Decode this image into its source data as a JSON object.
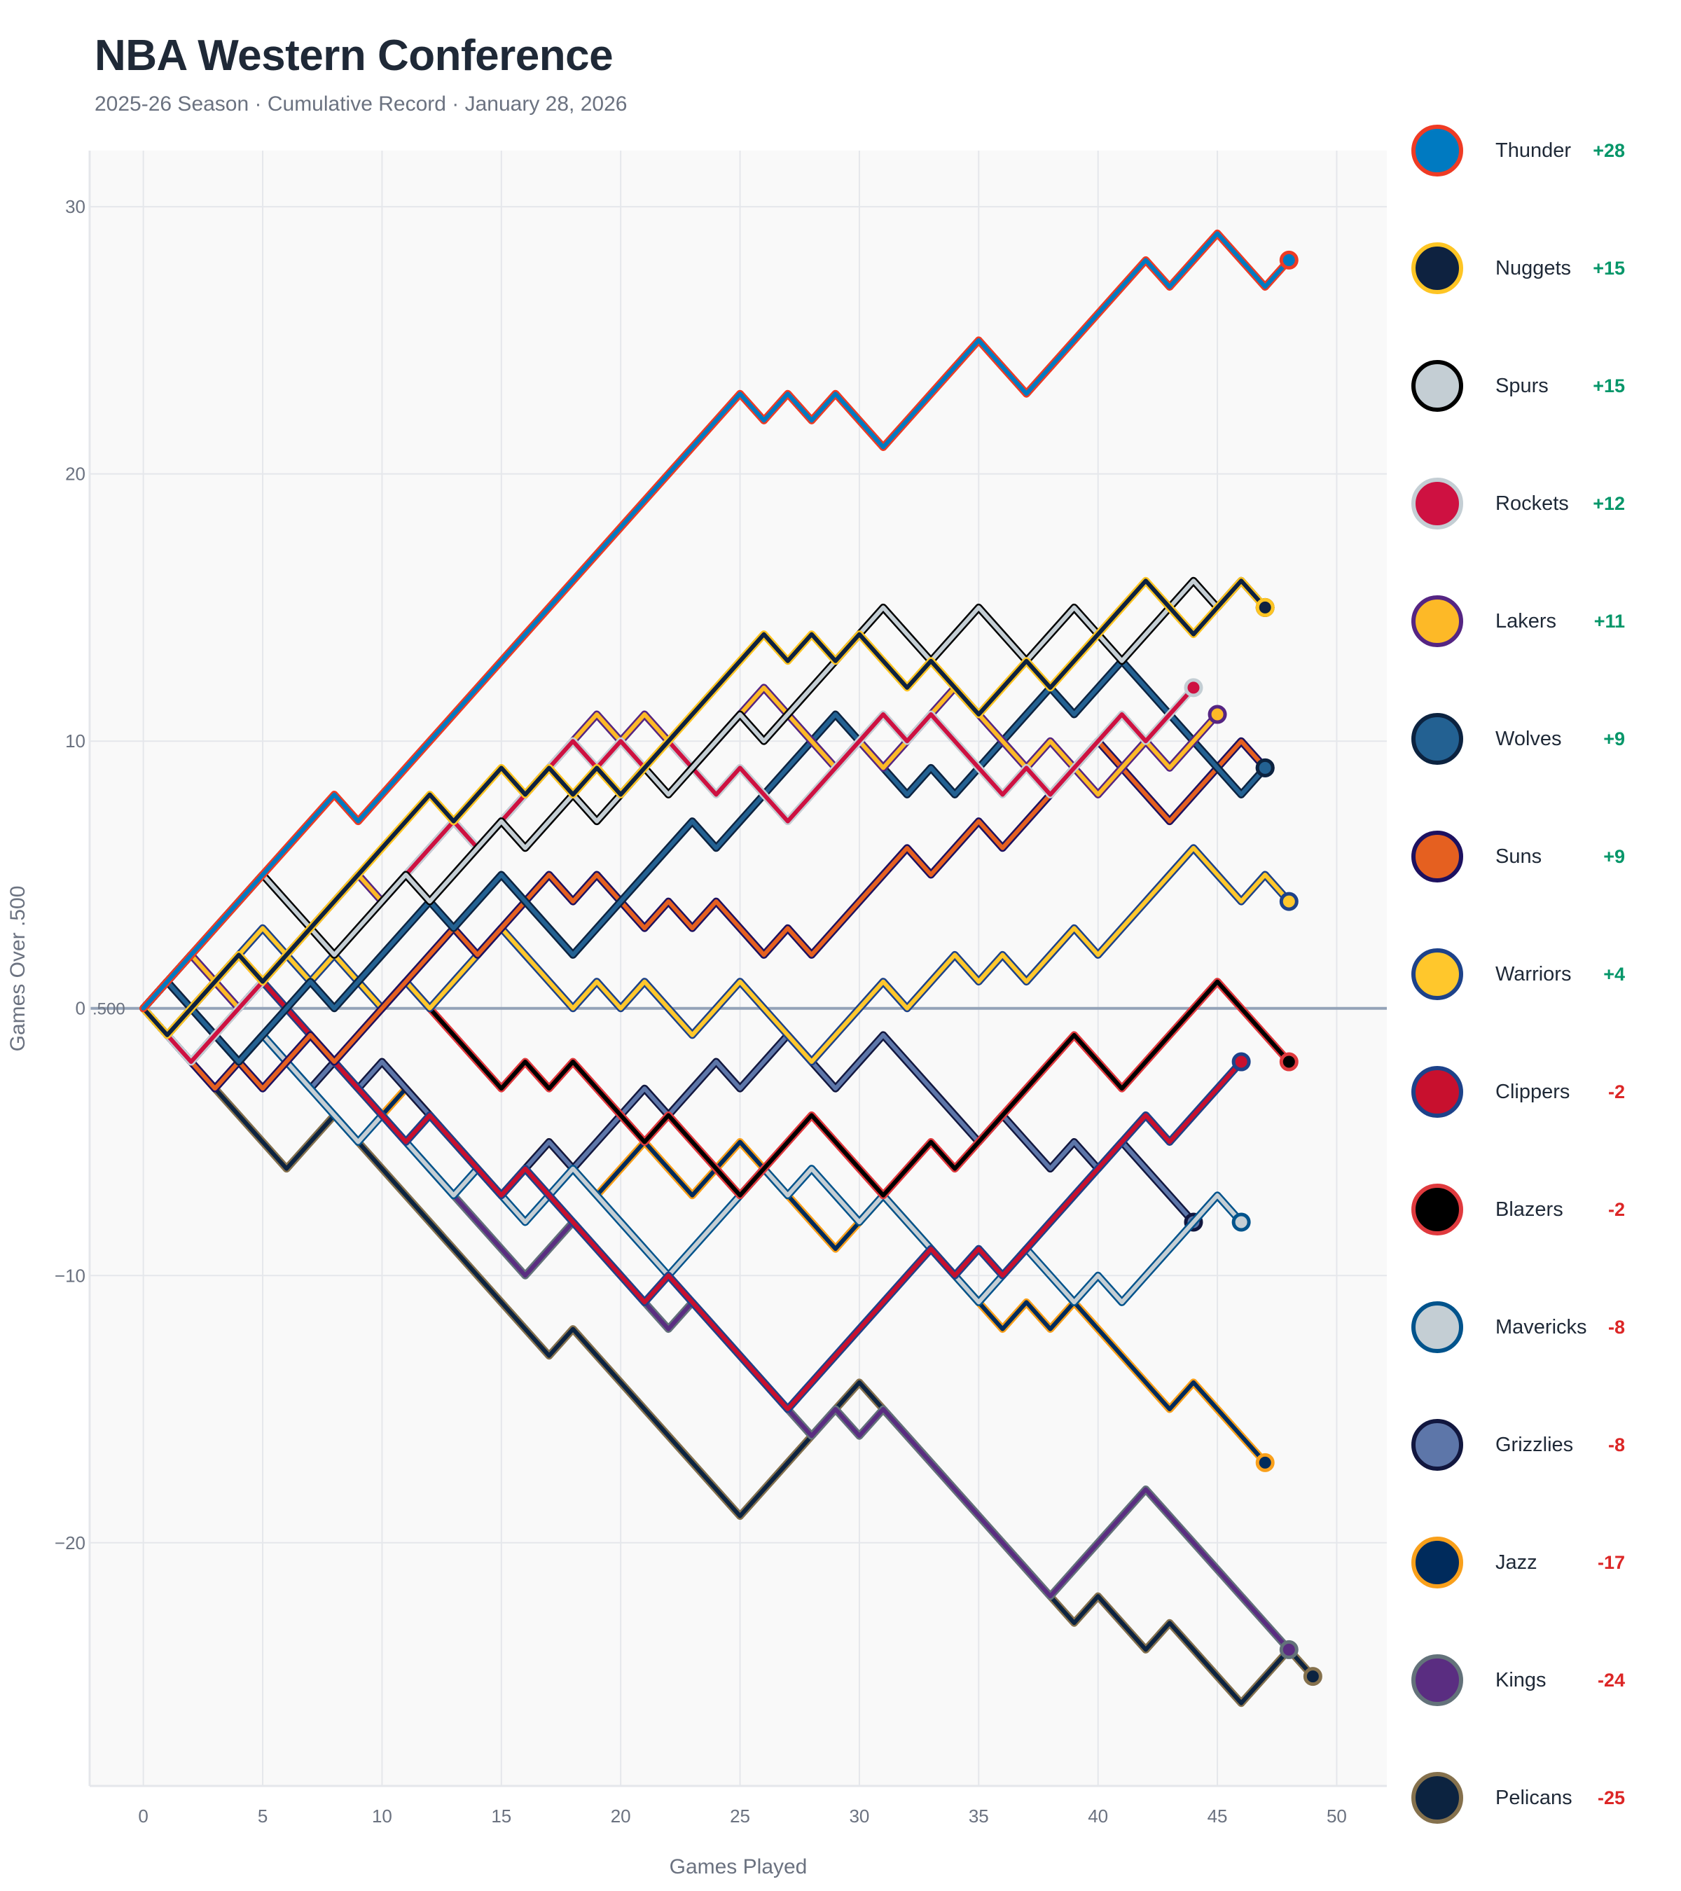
{
  "header": {
    "title": "NBA Western Conference",
    "subtitle": "2025-26 Season · Cumulative Record · January 28, 2026"
  },
  "chart_data": {
    "type": "line",
    "title": "NBA Western Conference",
    "subtitle": "2025-26 Season · Cumulative Record · January 28, 2026",
    "xlabel": "Games Played",
    "ylabel": "Games Over .500",
    "xlim": [
      -2.25,
      52.1
    ],
    "ylim": [
      -29.1,
      32.1
    ],
    "x_ticks": [
      0,
      5,
      10,
      15,
      20,
      25,
      30,
      35,
      40,
      45,
      50
    ],
    "y_ticks": [
      -20,
      -10,
      0,
      10,
      20,
      30
    ],
    "y_tick_labels": [
      "−20",
      "−10",
      "0",
      "10",
      "20",
      "30"
    ],
    "reference_line": {
      "value": 0,
      "label": ".500"
    },
    "grid": true,
    "legend_placement": "right",
    "series": [
      {
        "name": "Thunder",
        "final": "+28",
        "color": "#007AC1",
        "outline": "#EF3B24",
        "values": [
          0,
          1,
          2,
          3,
          4,
          5,
          6,
          7,
          8,
          7,
          8,
          9,
          10,
          11,
          12,
          13,
          14,
          15,
          16,
          17,
          18,
          19,
          20,
          21,
          22,
          23,
          22,
          23,
          22,
          23,
          22,
          21,
          22,
          23,
          24,
          25,
          24,
          23,
          24,
          25,
          26,
          27,
          28,
          27,
          28,
          29,
          28,
          27,
          28
        ]
      },
      {
        "name": "Nuggets",
        "final": "+15",
        "color": "#0E2240",
        "outline": "#FEC524",
        "values": [
          0,
          -1,
          0,
          1,
          2,
          1,
          2,
          3,
          4,
          5,
          6,
          7,
          8,
          7,
          8,
          9,
          8,
          9,
          8,
          9,
          8,
          9,
          10,
          11,
          12,
          13,
          14,
          13,
          14,
          13,
          14,
          13,
          12,
          13,
          12,
          11,
          12,
          13,
          12,
          13,
          14,
          15,
          16,
          15,
          14,
          15,
          16,
          15
        ]
      },
      {
        "name": "Spurs",
        "final": "+15",
        "color": "#C4CED4",
        "outline": "#000000",
        "values": [
          0,
          1,
          2,
          3,
          4,
          5,
          4,
          3,
          2,
          3,
          4,
          5,
          4,
          5,
          6,
          7,
          6,
          7,
          8,
          7,
          8,
          9,
          8,
          9,
          10,
          11,
          10,
          11,
          12,
          13,
          14,
          15,
          14,
          13,
          14,
          15,
          14,
          13,
          14,
          15,
          14,
          13,
          14,
          15,
          16,
          15,
          16,
          15
        ]
      },
      {
        "name": "Rockets",
        "final": "+12",
        "color": "#CE1141",
        "outline": "#C4CED4",
        "values": [
          0,
          -1,
          -2,
          -1,
          0,
          1,
          2,
          3,
          2,
          3,
          4,
          5,
          6,
          7,
          6,
          7,
          8,
          9,
          10,
          9,
          10,
          9,
          10,
          9,
          8,
          9,
          8,
          7,
          8,
          9,
          10,
          11,
          10,
          11,
          10,
          9,
          8,
          9,
          8,
          9,
          10,
          11,
          10,
          11,
          12
        ]
      },
      {
        "name": "Lakers",
        "final": "+11",
        "color": "#FDB927",
        "outline": "#552583",
        "values": [
          0,
          1,
          2,
          1,
          0,
          1,
          2,
          3,
          4,
          5,
          4,
          5,
          6,
          7,
          6,
          7,
          8,
          9,
          10,
          11,
          10,
          11,
          10,
          9,
          10,
          11,
          12,
          11,
          10,
          9,
          10,
          9,
          10,
          11,
          12,
          11,
          10,
          9,
          10,
          9,
          8,
          9,
          10,
          9,
          10,
          11
        ]
      },
      {
        "name": "Wolves",
        "final": "+9",
        "color": "#236192",
        "outline": "#0C2340",
        "values": [
          0,
          1,
          0,
          -1,
          -2,
          -1,
          0,
          1,
          0,
          1,
          2,
          3,
          4,
          3,
          4,
          5,
          4,
          3,
          2,
          3,
          4,
          5,
          6,
          7,
          6,
          7,
          8,
          9,
          10,
          11,
          10,
          9,
          8,
          9,
          8,
          9,
          10,
          11,
          12,
          11,
          12,
          13,
          12,
          11,
          10,
          9,
          8,
          9
        ]
      },
      {
        "name": "Suns",
        "final": "+9",
        "color": "#E56020",
        "outline": "#1D1160",
        "values": [
          0,
          -1,
          -2,
          -3,
          -2,
          -3,
          -2,
          -1,
          -2,
          -1,
          0,
          1,
          2,
          3,
          2,
          3,
          4,
          5,
          4,
          5,
          4,
          3,
          4,
          3,
          4,
          3,
          2,
          3,
          2,
          3,
          4,
          5,
          6,
          5,
          6,
          7,
          6,
          7,
          8,
          9,
          10,
          9,
          8,
          7,
          8,
          9,
          10,
          9
        ]
      },
      {
        "name": "Warriors",
        "final": "+4",
        "color": "#FFC72C",
        "outline": "#1D428A",
        "values": [
          0,
          1,
          2,
          1,
          2,
          3,
          2,
          1,
          2,
          1,
          0,
          1,
          0,
          1,
          2,
          3,
          2,
          1,
          0,
          1,
          0,
          1,
          0,
          -1,
          0,
          1,
          0,
          -1,
          -2,
          -1,
          0,
          1,
          0,
          1,
          2,
          1,
          2,
          1,
          2,
          3,
          2,
          3,
          4,
          5,
          6,
          5,
          4,
          5,
          4
        ]
      },
      {
        "name": "Clippers",
        "final": "-2",
        "color": "#C8102E",
        "outline": "#1D428A",
        "values": [
          0,
          -1,
          0,
          1,
          0,
          1,
          0,
          -1,
          -2,
          -3,
          -4,
          -5,
          -4,
          -5,
          -6,
          -7,
          -6,
          -7,
          -8,
          -9,
          -10,
          -11,
          -10,
          -11,
          -12,
          -13,
          -14,
          -15,
          -14,
          -13,
          -12,
          -11,
          -10,
          -9,
          -10,
          -9,
          -10,
          -9,
          -8,
          -7,
          -6,
          -5,
          -4,
          -5,
          -4,
          -3,
          -2
        ]
      },
      {
        "name": "Blazers",
        "final": "-2",
        "color": "#000000",
        "outline": "#E03A3E",
        "values": [
          0,
          1,
          0,
          1,
          2,
          1,
          0,
          -1,
          -2,
          -1,
          0,
          1,
          0,
          -1,
          -2,
          -3,
          -2,
          -3,
          -2,
          -3,
          -4,
          -5,
          -4,
          -5,
          -6,
          -7,
          -6,
          -5,
          -4,
          -5,
          -6,
          -7,
          -6,
          -5,
          -6,
          -5,
          -4,
          -3,
          -2,
          -1,
          -2,
          -3,
          -2,
          -1,
          0,
          1,
          0,
          -1,
          -2
        ]
      },
      {
        "name": "Mavericks",
        "final": "-8",
        "color": "#C4CED4",
        "outline": "#00538C",
        "values": [
          0,
          -1,
          -2,
          -1,
          -2,
          -1,
          -2,
          -3,
          -4,
          -5,
          -4,
          -5,
          -6,
          -7,
          -6,
          -7,
          -8,
          -7,
          -6,
          -7,
          -8,
          -9,
          -10,
          -9,
          -8,
          -7,
          -6,
          -7,
          -6,
          -7,
          -8,
          -7,
          -8,
          -9,
          -10,
          -11,
          -10,
          -9,
          -10,
          -11,
          -10,
          -11,
          -10,
          -9,
          -8,
          -7,
          -8
        ]
      },
      {
        "name": "Grizzlies",
        "final": "-8",
        "color": "#5D76A9",
        "outline": "#12173F",
        "values": [
          0,
          1,
          0,
          -1,
          -2,
          -1,
          -2,
          -3,
          -2,
          -3,
          -2,
          -3,
          -4,
          -5,
          -6,
          -7,
          -6,
          -5,
          -6,
          -5,
          -4,
          -3,
          -4,
          -3,
          -2,
          -3,
          -2,
          -1,
          -2,
          -3,
          -2,
          -1,
          -2,
          -3,
          -4,
          -5,
          -4,
          -5,
          -6,
          -5,
          -6,
          -5,
          -6,
          -7,
          -8
        ]
      },
      {
        "name": "Jazz",
        "final": "-17",
        "color": "#002B5C",
        "outline": "#F9A01B",
        "values": [
          0,
          -1,
          0,
          1,
          2,
          1,
          0,
          -1,
          -2,
          -3,
          -4,
          -3,
          -4,
          -5,
          -6,
          -7,
          -6,
          -5,
          -6,
          -7,
          -6,
          -5,
          -6,
          -7,
          -6,
          -5,
          -6,
          -7,
          -8,
          -9,
          -8,
          -7,
          -8,
          -9,
          -10,
          -11,
          -12,
          -11,
          -12,
          -11,
          -12,
          -13,
          -14,
          -15,
          -14,
          -15,
          -16,
          -17
        ]
      },
      {
        "name": "Kings",
        "final": "-24",
        "color": "#5A2D81",
        "outline": "#63727A",
        "values": [
          0,
          -1,
          -2,
          -1,
          0,
          1,
          0,
          -1,
          -2,
          -3,
          -4,
          -5,
          -6,
          -7,
          -8,
          -9,
          -10,
          -9,
          -8,
          -9,
          -10,
          -11,
          -12,
          -11,
          -12,
          -13,
          -14,
          -15,
          -16,
          -15,
          -16,
          -15,
          -16,
          -17,
          -18,
          -19,
          -20,
          -21,
          -22,
          -21,
          -20,
          -19,
          -18,
          -19,
          -20,
          -21,
          -22,
          -23,
          -24
        ]
      },
      {
        "name": "Pelicans",
        "final": "-25",
        "color": "#0C2340",
        "outline": "#85714D",
        "values": [
          0,
          -1,
          -2,
          -3,
          -4,
          -5,
          -6,
          -5,
          -4,
          -5,
          -6,
          -7,
          -8,
          -9,
          -10,
          -11,
          -12,
          -13,
          -12,
          -13,
          -14,
          -15,
          -16,
          -17,
          -18,
          -19,
          -18,
          -17,
          -16,
          -15,
          -14,
          -15,
          -16,
          -17,
          -18,
          -19,
          -20,
          -21,
          -22,
          -23,
          -22,
          -23,
          -24,
          -23,
          -24,
          -25,
          -26,
          -25,
          -24,
          -25
        ]
      }
    ]
  },
  "legend": {
    "items": [
      {
        "name": "Thunder",
        "value": "+28",
        "icon": "thunder-logo-icon"
      },
      {
        "name": "Nuggets",
        "value": "+15",
        "icon": "nuggets-logo-icon"
      },
      {
        "name": "Spurs",
        "value": "+15",
        "icon": "spurs-logo-icon"
      },
      {
        "name": "Rockets",
        "value": "+12",
        "icon": "rockets-logo-icon"
      },
      {
        "name": "Lakers",
        "value": "+11",
        "icon": "lakers-logo-icon"
      },
      {
        "name": "Wolves",
        "value": "+9",
        "icon": "wolves-logo-icon"
      },
      {
        "name": "Suns",
        "value": "+9",
        "icon": "suns-logo-icon"
      },
      {
        "name": "Warriors",
        "value": "+4",
        "icon": "warriors-logo-icon"
      },
      {
        "name": "Clippers",
        "value": "-2",
        "icon": "clippers-logo-icon"
      },
      {
        "name": "Blazers",
        "value": "-2",
        "icon": "blazers-logo-icon"
      },
      {
        "name": "Mavericks",
        "value": "-8",
        "icon": "mavericks-logo-icon"
      },
      {
        "name": "Grizzlies",
        "value": "-8",
        "icon": "grizzlies-logo-icon"
      },
      {
        "name": "Jazz",
        "value": "-17",
        "icon": "jazz-logo-icon"
      },
      {
        "name": "Kings",
        "value": "-24",
        "icon": "kings-logo-icon"
      },
      {
        "name": "Pelicans",
        "value": "-25",
        "icon": "pelicans-logo-icon"
      }
    ]
  },
  "colors": {
    "positive": "#059669",
    "negative": "#dc2626",
    "title": "#1f2937",
    "muted": "#6b7280",
    "reference": "#94a3b8"
  }
}
